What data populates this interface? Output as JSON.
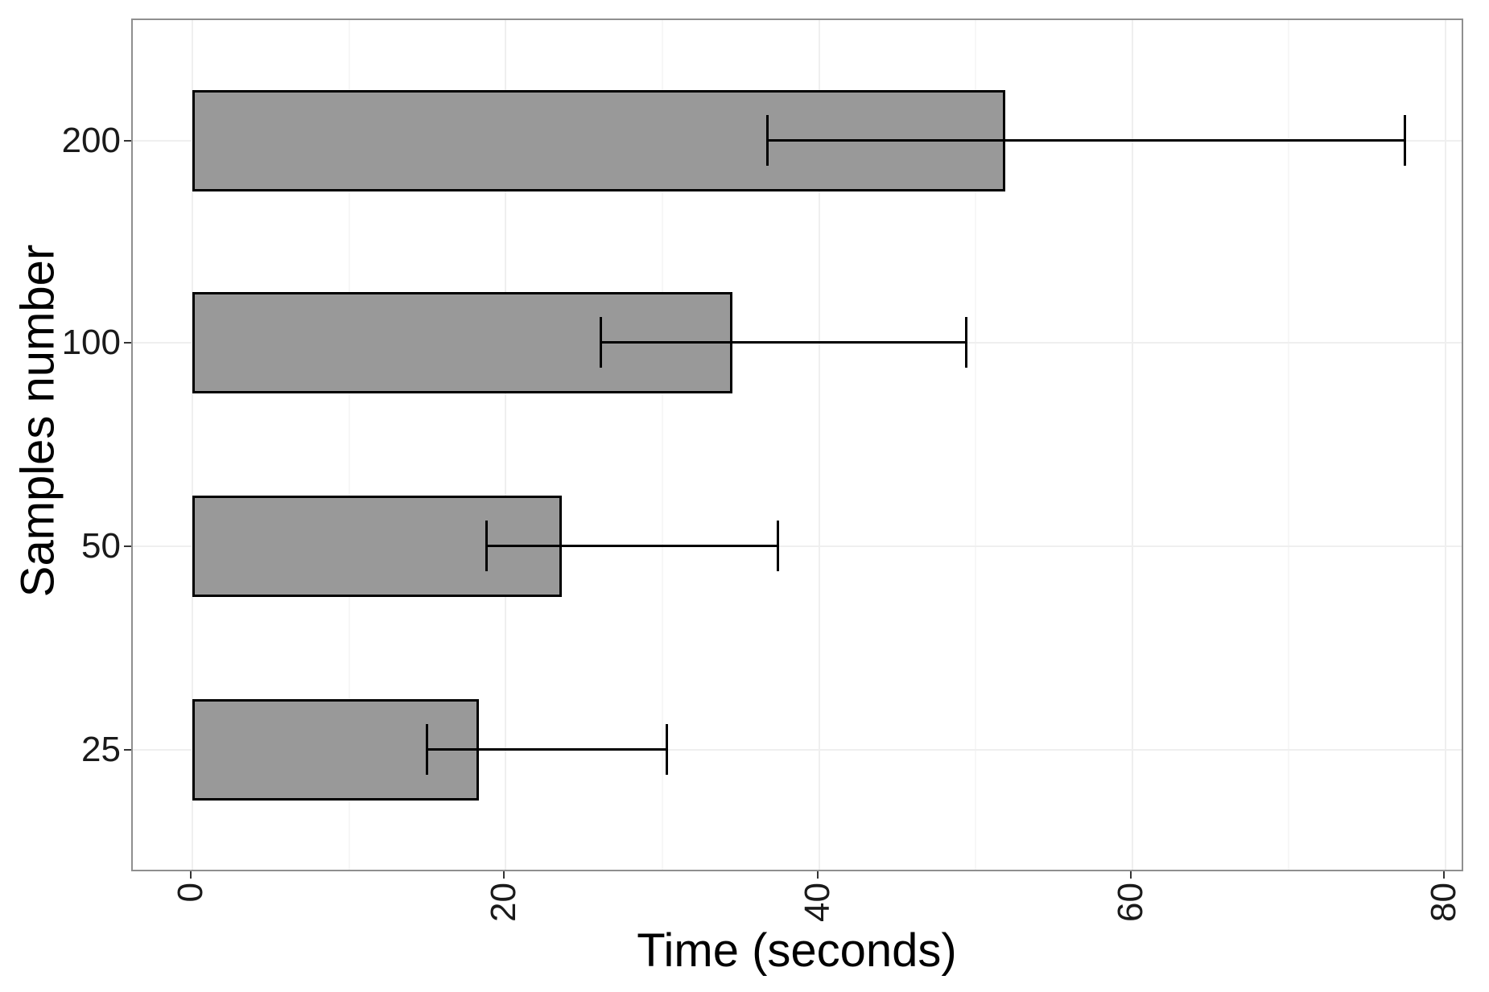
{
  "chart_data": {
    "type": "bar",
    "orientation": "horizontal",
    "title": "",
    "xlabel": "Time (seconds)",
    "ylabel": "Samples number",
    "categories": [
      "25",
      "50",
      "100",
      "200"
    ],
    "values": [
      18.3,
      23.6,
      34.5,
      51.9
    ],
    "error_low": [
      15.0,
      18.8,
      26.1,
      36.7
    ],
    "error_high": [
      30.3,
      37.4,
      49.4,
      77.4
    ],
    "x_ticks": [
      0,
      20,
      40,
      60,
      80
    ],
    "x_tick_labels": [
      "0",
      "20",
      "40",
      "60",
      "80"
    ],
    "x_minor_ticks": [
      10,
      30,
      50,
      70
    ],
    "xlim": [
      -3.8,
      81.2
    ],
    "x_tick_label_rotation_deg": 90,
    "grid": "on",
    "legend": "none",
    "style": {
      "bar_fill": "#999999",
      "bar_stroke": "#000000",
      "errorbar_color": "#000000",
      "panel_border_color": "#8f8f8f",
      "major_grid_color": "#efefef",
      "minor_grid_color": "#f7f7f7",
      "tick_color": "#333333",
      "background": "#ffffff"
    }
  }
}
